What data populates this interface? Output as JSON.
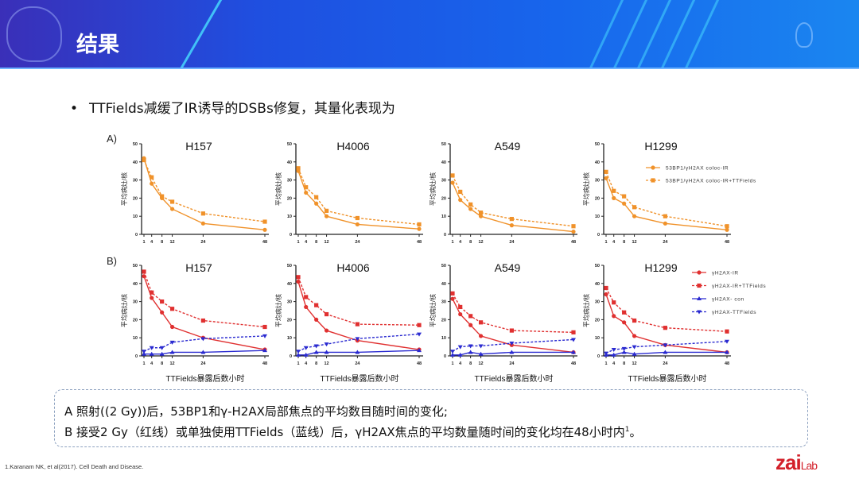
{
  "header": {
    "title": "结果"
  },
  "bullet": {
    "text": "TTFields减缓了IR诱导的DSBs修复，其量化表现为"
  },
  "note": {
    "line1": "A 照射((2 Gy))后，53BP1和γ-H2AX局部焦点的平均数目随时间的变化;",
    "line2": "B 接受2 Gy（红线）或单独使用TTFields（蓝线）后，γH2AX焦点的平均数量随时间的变化均在48小时内",
    "line2_sup": "1",
    "line2_end": "。"
  },
  "footer": {
    "citation": "1.Karanam NK, et al(2017). Cell Death and Disease.",
    "logo": "zaiLab"
  },
  "panels": {
    "A": "A)",
    "B": "B)"
  },
  "chart_data": [
    {
      "panel": "A",
      "type": "line",
      "title": "H157",
      "ylabel": "平均病灶/核",
      "xlabel": "",
      "x": [
        1,
        4,
        8,
        12,
        24,
        48
      ],
      "ylim": [
        0,
        50
      ],
      "yticks": [
        0,
        10,
        20,
        30,
        40,
        50
      ],
      "series": [
        {
          "name": "53BP1/γH2AX coloc-IR",
          "style": "solid",
          "marker": "circle",
          "color": "#f0922a",
          "values": [
            42,
            28,
            20,
            14,
            6,
            2.5
          ]
        },
        {
          "name": "53BP1/γH2AX coloc-IR+TTFields",
          "style": "dashed",
          "marker": "square",
          "color": "#f0922a",
          "values": [
            41,
            31.5,
            21,
            18,
            11.5,
            7
          ]
        }
      ]
    },
    {
      "panel": "A",
      "type": "line",
      "title": "H4006",
      "ylabel": "平均病灶/核",
      "xlabel": "",
      "x": [
        1,
        4,
        8,
        12,
        24,
        48
      ],
      "ylim": [
        0,
        50
      ],
      "yticks": [
        0,
        10,
        20,
        30,
        40,
        50
      ],
      "series": [
        {
          "name": "53BP1/γH2AX coloc-IR",
          "style": "solid",
          "marker": "circle",
          "color": "#f0922a",
          "values": [
            35,
            23,
            17,
            10,
            5.5,
            3
          ]
        },
        {
          "name": "53BP1/γH2AX coloc-IR+TTFields",
          "style": "dashed",
          "marker": "square",
          "color": "#f0922a",
          "values": [
            36.5,
            26,
            20.5,
            13,
            9,
            5.5
          ]
        }
      ]
    },
    {
      "panel": "A",
      "type": "line",
      "title": "A549",
      "ylabel": "平均病灶/核",
      "xlabel": "",
      "x": [
        1,
        4,
        8,
        12,
        24,
        48
      ],
      "ylim": [
        0,
        50
      ],
      "yticks": [
        0,
        10,
        20,
        30,
        40,
        50
      ],
      "series": [
        {
          "name": "53BP1/γH2AX coloc-IR",
          "style": "solid",
          "marker": "circle",
          "color": "#f0922a",
          "values": [
            28.5,
            19,
            14,
            10,
            5,
            1.5
          ]
        },
        {
          "name": "53BP1/γH2AX coloc-IR+TTFields",
          "style": "dashed",
          "marker": "square",
          "color": "#f0922a",
          "values": [
            32.5,
            23.5,
            16.5,
            12,
            8.5,
            4.5
          ]
        }
      ]
    },
    {
      "panel": "A",
      "type": "line",
      "title": "H1299",
      "ylabel": "平均病灶/核",
      "xlabel": "",
      "x": [
        1,
        4,
        8,
        12,
        24,
        48
      ],
      "ylim": [
        0,
        50
      ],
      "yticks": [
        0,
        10,
        20,
        30,
        40,
        50
      ],
      "legend": "right",
      "series": [
        {
          "name": "53BP1/γH2AX coloc-IR",
          "style": "solid",
          "marker": "circle",
          "color": "#f0922a",
          "values": [
            31,
            20,
            17,
            10,
            6,
            2.5
          ]
        },
        {
          "name": "53BP1/γH2AX coloc-IR+TTFields",
          "style": "dashed",
          "marker": "square",
          "color": "#f0922a",
          "values": [
            34.5,
            24,
            21,
            15,
            10,
            4.5
          ]
        }
      ]
    },
    {
      "panel": "B",
      "type": "line",
      "title": "H157",
      "ylabel": "平均病灶/核",
      "xlabel": "TTFields暴露后数小时",
      "x": [
        1,
        4,
        8,
        12,
        24,
        48
      ],
      "ylim": [
        0,
        50
      ],
      "yticks": [
        0,
        10,
        20,
        30,
        40,
        50
      ],
      "series": [
        {
          "name": "γH2AX-IR",
          "style": "solid",
          "marker": "circle",
          "color": "#e03030",
          "values": [
            44,
            32,
            24,
            16,
            10,
            3.5
          ]
        },
        {
          "name": "γH2AX-IR+TTFields",
          "style": "dashed",
          "marker": "square",
          "color": "#e03030",
          "values": [
            46.5,
            35,
            30,
            26,
            19.5,
            16
          ]
        },
        {
          "name": "γH2AX- con",
          "style": "solid",
          "marker": "triangle-up",
          "color": "#2a2ad0",
          "values": [
            1,
            1,
            1,
            2,
            2,
            3
          ]
        },
        {
          "name": "γH2AX-TTFields",
          "style": "dashed",
          "marker": "triangle-down",
          "color": "#2a2ad0",
          "values": [
            2.5,
            4.5,
            4.5,
            7.5,
            9.5,
            11
          ]
        }
      ]
    },
    {
      "panel": "B",
      "type": "line",
      "title": "H4006",
      "ylabel": "平均病灶/核",
      "xlabel": "TTFields暴露后数小时",
      "x": [
        1,
        4,
        8,
        12,
        24,
        48
      ],
      "ylim": [
        0,
        50
      ],
      "yticks": [
        0,
        10,
        20,
        30,
        40,
        50
      ],
      "series": [
        {
          "name": "γH2AX-IR",
          "style": "solid",
          "marker": "circle",
          "color": "#e03030",
          "values": [
            41,
            27,
            20,
            14,
            8.5,
            3.5
          ]
        },
        {
          "name": "γH2AX-IR+TTFields",
          "style": "dashed",
          "marker": "square",
          "color": "#e03030",
          "values": [
            43.5,
            32.5,
            28,
            23,
            17.5,
            17
          ]
        },
        {
          "name": "γH2AX- con",
          "style": "solid",
          "marker": "triangle-up",
          "color": "#2a2ad0",
          "values": [
            0.5,
            0.5,
            2,
            2,
            2,
            3
          ]
        },
        {
          "name": "γH2AX-TTFields",
          "style": "dashed",
          "marker": "triangle-down",
          "color": "#2a2ad0",
          "values": [
            2.5,
            4.5,
            5.5,
            6.5,
            9.5,
            12
          ]
        }
      ]
    },
    {
      "panel": "B",
      "type": "line",
      "title": "A549",
      "ylabel": "平均病灶/核",
      "xlabel": "TTFields暴露后数小时",
      "x": [
        1,
        4,
        8,
        12,
        24,
        48
      ],
      "ylim": [
        0,
        50
      ],
      "yticks": [
        0,
        10,
        20,
        30,
        40,
        50
      ],
      "series": [
        {
          "name": "γH2AX-IR",
          "style": "solid",
          "marker": "circle",
          "color": "#e03030",
          "values": [
            31.5,
            23,
            17,
            11,
            6,
            2
          ]
        },
        {
          "name": "γH2AX-IR+TTFields",
          "style": "dashed",
          "marker": "square",
          "color": "#e03030",
          "values": [
            34.5,
            27,
            22,
            18.5,
            14,
            13
          ]
        },
        {
          "name": "γH2AX- con",
          "style": "solid",
          "marker": "triangle-up",
          "color": "#2a2ad0",
          "values": [
            0.5,
            0.5,
            2,
            1,
            2,
            2
          ]
        },
        {
          "name": "γH2AX-TTFields",
          "style": "dashed",
          "marker": "triangle-down",
          "color": "#2a2ad0",
          "values": [
            2.5,
            5,
            5.5,
            5.5,
            7,
            9
          ]
        }
      ]
    },
    {
      "panel": "B",
      "type": "line",
      "title": "H1299",
      "ylabel": "平均病灶/核",
      "xlabel": "TTFields暴露后数小时",
      "x": [
        1,
        4,
        8,
        12,
        24,
        48
      ],
      "ylim": [
        0,
        50
      ],
      "yticks": [
        0,
        10,
        20,
        30,
        40,
        50
      ],
      "legend": "right",
      "series": [
        {
          "name": "γH2AX-IR",
          "style": "solid",
          "marker": "circle",
          "color": "#e03030",
          "values": [
            34,
            22,
            18.5,
            11,
            6,
            2
          ]
        },
        {
          "name": "γH2AX-IR+TTFields",
          "style": "dashed",
          "marker": "square",
          "color": "#e03030",
          "values": [
            37.5,
            29.5,
            24,
            19.5,
            15.5,
            13.5
          ]
        },
        {
          "name": "γH2AX- con",
          "style": "solid",
          "marker": "triangle-up",
          "color": "#2a2ad0",
          "values": [
            0.5,
            0.5,
            2,
            1,
            2,
            2
          ]
        },
        {
          "name": "γH2AX-TTFields",
          "style": "dashed",
          "marker": "triangle-down",
          "color": "#2a2ad0",
          "values": [
            1.5,
            3.5,
            4,
            5,
            6,
            8
          ]
        }
      ]
    }
  ]
}
